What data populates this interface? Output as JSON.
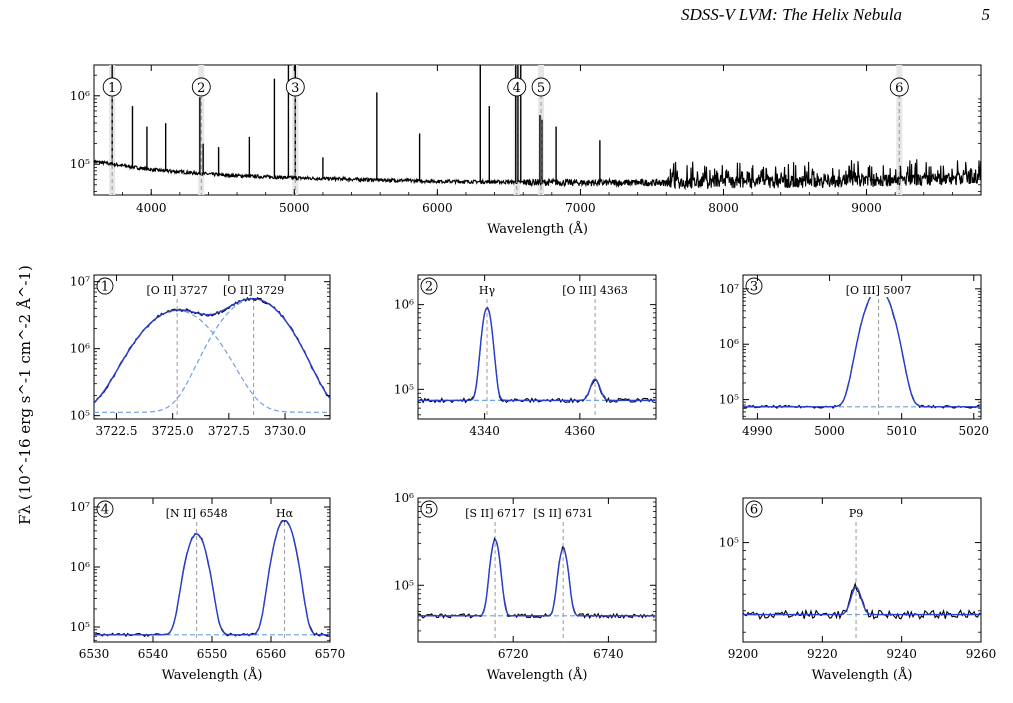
{
  "header": {
    "running_title": "SDSS-V LVM: The Helix Nebula",
    "page_number": "5"
  },
  "shared": {
    "ylabel": "F_λ (10⁻¹⁶ erg s⁻¹ cm⁻² Å⁻¹)",
    "ylabel_math": "Fλ (10^-16 erg s^-1 cm^-2 Å^-1)",
    "xlabel": "Wavelength (Å)"
  },
  "chart_data": [
    {
      "type": "line",
      "id": "overview",
      "xlabel": "Wavelength (Å)",
      "xlim": [
        3600,
        9800
      ],
      "ylim_log10": [
        4.55,
        6.45
      ],
      "yscale": "log",
      "xticks": [
        4000,
        5000,
        6000,
        7000,
        8000,
        9000
      ],
      "xtick_labels": [
        "4000",
        "5000",
        "6000",
        "7000",
        "8000",
        "9000"
      ],
      "ytick_labels": [
        {
          "value_log10": 6,
          "label": "10⁶"
        },
        {
          "value_log10": 5,
          "label": "10⁵"
        }
      ],
      "continuum_log10": [
        [
          3600,
          5.04
        ],
        [
          4000,
          4.92
        ],
        [
          4500,
          4.84
        ],
        [
          5000,
          4.8
        ],
        [
          6000,
          4.75
        ],
        [
          7000,
          4.73
        ],
        [
          8000,
          4.73
        ],
        [
          9000,
          4.75
        ],
        [
          9800,
          4.8
        ]
      ],
      "emission_lines": [
        {
          "x": 3727,
          "peak_log10": 6.45
        },
        {
          "x": 3869,
          "peak_log10": 5.85
        },
        {
          "x": 3970,
          "peak_log10": 5.55
        },
        {
          "x": 4101,
          "peak_log10": 5.6
        },
        {
          "x": 4340,
          "peak_log10": 5.98
        },
        {
          "x": 4363,
          "peak_log10": 5.3
        },
        {
          "x": 4471,
          "peak_log10": 5.25
        },
        {
          "x": 4686,
          "peak_log10": 5.4
        },
        {
          "x": 4861,
          "peak_log10": 6.25
        },
        {
          "x": 4959,
          "peak_log10": 6.45
        },
        {
          "x": 5007,
          "peak_log10": 6.45
        },
        {
          "x": 5200,
          "peak_log10": 5.1
        },
        {
          "x": 5577,
          "peak_log10": 6.05
        },
        {
          "x": 5876,
          "peak_log10": 5.45
        },
        {
          "x": 6300,
          "peak_log10": 6.45
        },
        {
          "x": 6363,
          "peak_log10": 5.85
        },
        {
          "x": 6548,
          "peak_log10": 6.45
        },
        {
          "x": 6563,
          "peak_log10": 6.45
        },
        {
          "x": 6583,
          "peak_log10": 6.45
        },
        {
          "x": 6717,
          "peak_log10": 5.72
        },
        {
          "x": 6731,
          "peak_log10": 5.65
        },
        {
          "x": 6830,
          "peak_log10": 5.55
        },
        {
          "x": 7136,
          "peak_log10": 5.35
        }
      ],
      "markers": [
        {
          "label": "1",
          "x": 3727
        },
        {
          "label": "2",
          "x": 4350
        },
        {
          "label": "3",
          "x": 5007
        },
        {
          "label": "4",
          "x": 6555
        },
        {
          "label": "5",
          "x": 6725
        },
        {
          "label": "6",
          "x": 9229
        }
      ],
      "line_color": "#000000",
      "marker_band_color": "#e6e6e6",
      "marker_line_color": "#999999"
    },
    {
      "type": "line",
      "id": "panel-1",
      "number": "1",
      "xlim": [
        3721.5,
        3732
      ],
      "ylim_log10": [
        4.95,
        7.1
      ],
      "yscale": "log",
      "xticks": [
        3722.5,
        3725.0,
        3727.5,
        3730.0
      ],
      "xtick_labels": [
        "3722.5",
        "3725.0",
        "3727.5",
        "3730.0"
      ],
      "yticks": [
        {
          "value_log10": 7,
          "label": "10⁷"
        },
        {
          "value_log10": 6,
          "label": "10⁶"
        },
        {
          "value_log10": 5,
          "label": "10⁵"
        }
      ],
      "baseline_log10": 5.05,
      "components": [
        {
          "name": "[O II] 3727",
          "center": 3725.2,
          "peak_log10": 6.57,
          "sigma": 1.25
        },
        {
          "name": "[O II] 3729",
          "center": 3728.6,
          "peak_log10": 6.74,
          "sigma": 1.15
        }
      ],
      "line_labels": [
        {
          "text": "[O II] 3727",
          "x": 3725.2
        },
        {
          "text": "[O II] 3729",
          "x": 3728.6
        }
      ],
      "show_components": true,
      "xlabel": ""
    },
    {
      "type": "line",
      "id": "panel-2",
      "number": "2",
      "xlim": [
        4326,
        4376
      ],
      "ylim_log10": [
        4.65,
        6.35
      ],
      "yscale": "log",
      "xticks": [
        4340,
        4360
      ],
      "xtick_labels": [
        "4340",
        "4360"
      ],
      "yticks": [
        {
          "value_log10": 6,
          "label": "10⁶"
        },
        {
          "value_log10": 5,
          "label": "10⁵"
        }
      ],
      "baseline_log10": 4.87,
      "components": [
        {
          "name": "Hγ",
          "center": 4340.5,
          "peak_log10": 5.96,
          "sigma": 0.9
        },
        {
          "name": "[O III] 4363",
          "center": 4363.2,
          "peak_log10": 5.12,
          "sigma": 0.9
        }
      ],
      "line_labels": [
        {
          "text": "Hγ",
          "x": 4340.5
        },
        {
          "text": "[O III] 4363",
          "x": 4363.2
        }
      ],
      "show_components": false,
      "xlabel": ""
    },
    {
      "type": "line",
      "id": "panel-3",
      "number": "3",
      "xlim": [
        4988,
        5021
      ],
      "ylim_log10": [
        4.65,
        7.25
      ],
      "yscale": "log",
      "xticks": [
        4990,
        5000,
        5010,
        5020
      ],
      "xtick_labels": [
        "4990",
        "5000",
        "5010",
        "5020"
      ],
      "yticks": [
        {
          "value_log10": 7,
          "label": "10⁷"
        },
        {
          "value_log10": 6,
          "label": "10⁶"
        },
        {
          "value_log10": 5,
          "label": "10⁵"
        }
      ],
      "baseline_log10": 4.87,
      "components": [
        {
          "name": "[O III] 5007",
          "center": 5006.8,
          "peak_log10": 7.0,
          "sigma": 1.4
        }
      ],
      "line_labels": [
        {
          "text": "[O III] 5007",
          "x": 5006.8
        }
      ],
      "show_components": false,
      "xlabel": ""
    },
    {
      "type": "line",
      "id": "panel-4",
      "number": "4",
      "xlim": [
        6530,
        6570
      ],
      "ylim_log10": [
        4.75,
        7.15
      ],
      "yscale": "log",
      "xticks": [
        6530,
        6540,
        6550,
        6560,
        6570
      ],
      "xtick_labels": [
        "6530",
        "6540",
        "6550",
        "6560",
        "6570"
      ],
      "yticks": [
        {
          "value_log10": 7,
          "label": "10⁷"
        },
        {
          "value_log10": 6,
          "label": "10⁶"
        },
        {
          "value_log10": 5,
          "label": "10⁵"
        }
      ],
      "baseline_log10": 4.87,
      "components": [
        {
          "name": "[N II] 6548",
          "center": 6547.4,
          "peak_log10": 6.55,
          "sigma": 1.3
        },
        {
          "name": "Hα",
          "center": 6562.3,
          "peak_log10": 6.78,
          "sigma": 1.3
        }
      ],
      "line_labels": [
        {
          "text": "[N II] 6548",
          "x": 6547.4
        },
        {
          "text": "Hα",
          "x": 6562.3
        }
      ],
      "show_components": false,
      "xlabel": "Wavelength (Å)"
    },
    {
      "type": "line",
      "id": "panel-5",
      "number": "5",
      "xlim": [
        6700,
        6750
      ],
      "ylim_log10": [
        4.35,
        6.0
      ],
      "yscale": "log",
      "xticks": [
        6720,
        6740
      ],
      "xtick_labels": [
        "6720",
        "6740"
      ],
      "yticks": [
        {
          "value_log10": 6,
          "label": "10⁶"
        },
        {
          "value_log10": 5,
          "label": "10⁵"
        }
      ],
      "baseline_log10": 4.65,
      "components": [
        {
          "name": "[S II] 6717",
          "center": 6716.2,
          "peak_log10": 5.52,
          "sigma": 0.85
        },
        {
          "name": "[S II] 6731",
          "center": 6730.5,
          "peak_log10": 5.42,
          "sigma": 0.85
        }
      ],
      "line_labels": [
        {
          "text": "[S II] 6717",
          "x": 6716.2
        },
        {
          "text": "[S II] 6731",
          "x": 6730.5
        }
      ],
      "show_components": false,
      "xlabel": "Wavelength (Å)"
    },
    {
      "type": "line",
      "id": "panel-6",
      "number": "6",
      "xlim": [
        9200,
        9260
      ],
      "ylim_log10": [
        4.42,
        5.26
      ],
      "yscale": "log",
      "xticks": [
        9200,
        9220,
        9240,
        9260
      ],
      "xtick_labels": [
        "9200",
        "9220",
        "9240",
        "9260"
      ],
      "yticks": [
        {
          "value_log10": 5,
          "label": "10⁵"
        }
      ],
      "baseline_log10": 4.58,
      "components": [
        {
          "name": "P9",
          "center": 9228.5,
          "peak_log10": 4.74,
          "sigma": 1.2
        }
      ],
      "line_labels": [
        {
          "text": "P9",
          "x": 9228.5
        }
      ],
      "show_components": false,
      "xlabel": "Wavelength (Å)"
    }
  ],
  "style": {
    "data_color": "#000000",
    "model_color": "#2a3fd0",
    "component_color": "#6fa0e0",
    "marker_color": "#999999"
  }
}
